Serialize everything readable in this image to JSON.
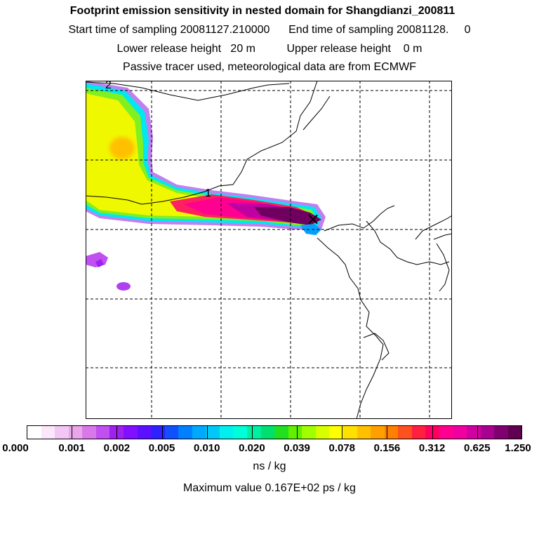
{
  "header": {
    "title": "Footprint emission sensitivity in nested domain for Shangdianzi_200811",
    "sampling_line": "Start time of sampling 20081127.210000      End time of sampling 20081128.     0",
    "release_line": "Lower release height   20 m          Upper release height    0 m",
    "tracer_line": "Passive tracer used, meteorological data are from ECMWF"
  },
  "map": {
    "labels": [
      "2",
      "1"
    ],
    "receptor_marker": "×"
  },
  "legend": {
    "tick_labels": [
      "0.000",
      "0.001",
      "0.002",
      "0.005",
      "0.010",
      "0.020",
      "0.039",
      "0.078",
      "0.156",
      "0.312",
      "0.625",
      "1.250"
    ],
    "colors": [
      "#ffffff",
      "#fbe7fb",
      "#f3c7f3",
      "#eaa6ea",
      "#d978ea",
      "#c050f0",
      "#a020f0",
      "#8010ff",
      "#5d10ff",
      "#3020ff",
      "#1050ff",
      "#0080ff",
      "#00a8ff",
      "#00c8f8",
      "#00f0f0",
      "#00ffd8",
      "#00f0a0",
      "#00e070",
      "#20e020",
      "#60f000",
      "#a0ff00",
      "#d8ff00",
      "#ffff00",
      "#ffe000",
      "#ffc000",
      "#ffa000",
      "#ff8000",
      "#ff5020",
      "#ff2040",
      "#ff0060",
      "#ff0090",
      "#f000a0",
      "#d000a0",
      "#a80090",
      "#800070",
      "#600050"
    ],
    "unit": "ns / kg"
  },
  "footer": {
    "max_value": "Maximum value  0.167E+02 ps / kg"
  }
}
